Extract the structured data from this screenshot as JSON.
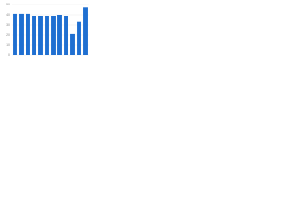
{
  "chart_data": {
    "type": "bar",
    "categories": [
      null,
      null,
      null,
      null,
      null,
      null,
      null,
      null,
      null,
      null,
      null,
      null
    ],
    "values": [
      41,
      41,
      41,
      39,
      39,
      39,
      39,
      40,
      39,
      21,
      33,
      47
    ],
    "color": "#1f6fd1",
    "ylim": [
      0,
      50
    ],
    "yticks": [
      0,
      10,
      20,
      30,
      40,
      50
    ],
    "grid": true
  }
}
